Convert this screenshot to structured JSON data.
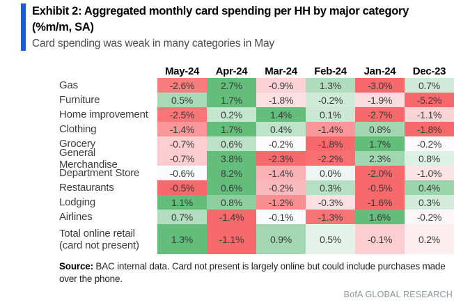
{
  "exhibit": {
    "title": "Exhibit 2: Aggregated monthly card spending per HH by major category (%m/m, SA)",
    "subtitle": "Card spending was weak in many categories in May",
    "accent_color": "#1e5ec6"
  },
  "chart_data": {
    "type": "heatmap",
    "title": "Aggregated monthly card spending per HH by major category (%m/m, SA)",
    "unit": "% m/m, seasonally adjusted",
    "columns": [
      "May-24",
      "Apr-24",
      "Mar-24",
      "Feb-24",
      "Jan-24",
      "Dec-23"
    ],
    "rows": [
      {
        "category": "Gas",
        "values": [
          -2.6,
          2.7,
          -0.9,
          1.3,
          -3.0,
          0.7
        ]
      },
      {
        "category": "Furniture",
        "values": [
          0.5,
          1.7,
          -1.8,
          -0.2,
          -1.9,
          -5.2
        ]
      },
      {
        "category": "Home improvement",
        "values": [
          -2.5,
          0.2,
          1.4,
          0.1,
          -2.7,
          -1.1
        ]
      },
      {
        "category": "Clothing",
        "values": [
          -1.4,
          1.7,
          0.4,
          -1.4,
          0.8,
          -1.8
        ]
      },
      {
        "category": "Grocery",
        "values": [
          -0.7,
          0.6,
          -0.2,
          -1.8,
          1.7,
          -0.2
        ]
      },
      {
        "category": "General Merchandise",
        "values": [
          -0.7,
          3.8,
          -2.3,
          -2.2,
          2.3,
          0.8
        ]
      },
      {
        "category": "Department Store",
        "values": [
          -0.6,
          8.2,
          -1.4,
          0.0,
          -2.0,
          -1.0
        ]
      },
      {
        "category": "Restaurants",
        "values": [
          -0.5,
          0.6,
          -0.2,
          0.3,
          -0.5,
          0.4
        ]
      },
      {
        "category": "Lodging",
        "values": [
          1.1,
          0.8,
          -1.2,
          -0.3,
          -1.6,
          0.3
        ]
      },
      {
        "category": "Airlines",
        "values": [
          0.7,
          -1.4,
          -0.1,
          -1.3,
          1.6,
          -0.2
        ]
      },
      {
        "category": "Total online retail (card not present)",
        "values": [
          1.3,
          -1.1,
          0.9,
          0.5,
          -0.1,
          0.2
        ]
      }
    ],
    "value_format": "one_decimal_percent",
    "color_scale": {
      "min_color": "#F8696B",
      "mid_color": "#FCFCFF",
      "max_color": "#63BE7B",
      "scope": "per_row",
      "midpoint": "row_median"
    },
    "legend": "none",
    "grid": "off"
  },
  "footer": {
    "source_label": "Source:",
    "source_text": " BAC internal data. Card not present is largely online but could include purchases made over the phone.",
    "branding": "BofA GLOBAL RESEARCH"
  }
}
